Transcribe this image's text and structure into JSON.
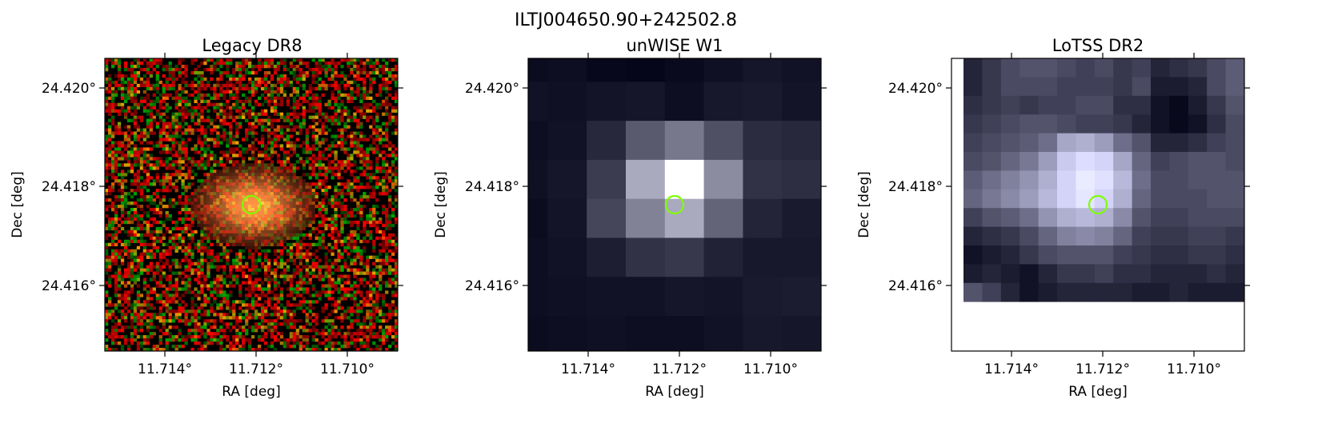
{
  "figure": {
    "title": "ILTJ004650.90+242502.8",
    "panels": [
      {
        "title": "Legacy DR8",
        "xlabel": "RA [deg]",
        "ylabel": "Dec [deg]",
        "xticks": [
          "11.714°",
          "11.712°",
          "11.710°"
        ],
        "yticks": [
          "24.420°",
          "24.418°",
          "24.416°"
        ],
        "image": "optical color cutout (noisy red/green pixels, diffuse orange galaxy at center)"
      },
      {
        "title": "unWISE W1",
        "xlabel": "RA [deg]",
        "ylabel": "Dec [deg]",
        "xticks": [
          "11.714°",
          "11.712°",
          "11.710°"
        ],
        "yticks": [
          "24.420°",
          "24.418°",
          "24.416°"
        ],
        "image": "coarse grayscale infrared pixel map, bright source at center"
      },
      {
        "title": "LoTSS DR2",
        "xlabel": "RA [deg]",
        "ylabel": "Dec [deg]",
        "xticks": [
          "11.714°",
          "11.712°",
          "11.710°"
        ],
        "yticks": [
          "24.420°",
          "24.418°",
          "24.416°"
        ],
        "image": "grayscale radio pixel map with blue tint, bright extended source at center"
      }
    ],
    "marker_color": "#7fff00"
  }
}
